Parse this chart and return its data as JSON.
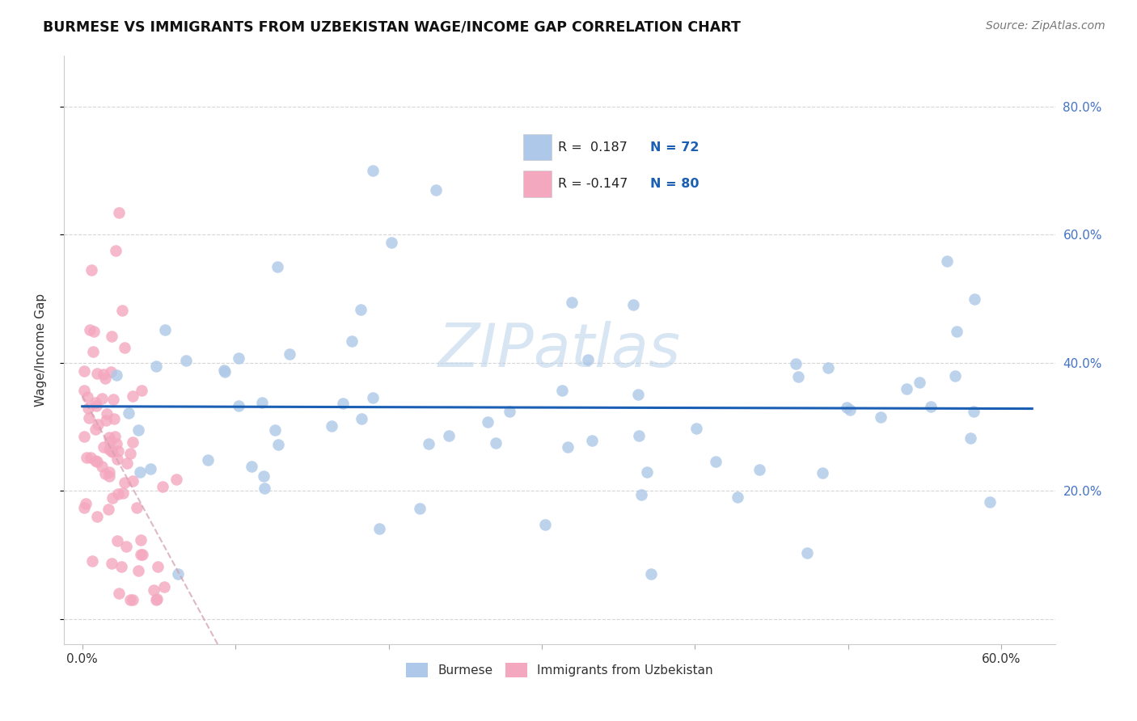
{
  "title": "BURMESE VS IMMIGRANTS FROM UZBEKISTAN WAGE/INCOME GAP CORRELATION CHART",
  "source": "Source: ZipAtlas.com",
  "ylabel": "Wage/Income Gap",
  "blue_color": "#adc8e8",
  "pink_color": "#f4a8c0",
  "blue_line_color": "#1a5fb4",
  "pink_line_color": "#d4a0b0",
  "legend_label1": "Burmese",
  "legend_label2": "Immigrants from Uzbekistan",
  "watermark": "ZIPatlas",
  "R1": "0.187",
  "N1": "72",
  "R2": "-0.147",
  "N2": "80"
}
